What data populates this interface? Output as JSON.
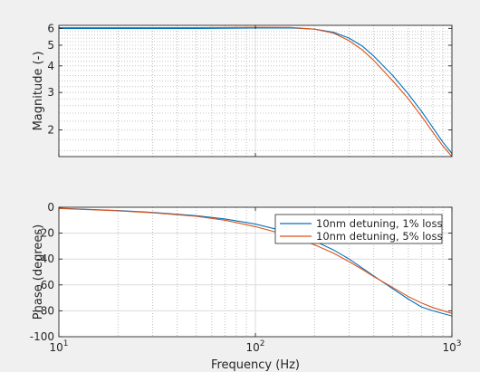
{
  "colors": {
    "series1": "#0072BD",
    "series2": "#D95319",
    "background": "#f0f0f0",
    "axes_bg": "#ffffff"
  },
  "chart_data": [
    {
      "type": "line",
      "xscale": "log",
      "yscale": "log",
      "xlim": [
        10,
        1000
      ],
      "ylim": [
        1.5,
        6.2
      ],
      "grid": true,
      "ylabel": "Magnitude (-)",
      "yticks": [
        2,
        3,
        4,
        5,
        6
      ],
      "ytick_labels": [
        "2",
        "3",
        "4",
        "5",
        "6"
      ],
      "series": [
        {
          "x": [
            10,
            20,
            50,
            100,
            150,
            200,
            250,
            300,
            350,
            400,
            500,
            600,
            700,
            800,
            900,
            1000
          ],
          "y": [
            6.0,
            6.0,
            6.0,
            6.02,
            6.03,
            5.95,
            5.75,
            5.4,
            4.95,
            4.45,
            3.6,
            2.95,
            2.45,
            2.05,
            1.75,
            1.55
          ]
        },
        {
          "x": [
            10,
            20,
            50,
            100,
            150,
            200,
            250,
            300,
            350,
            400,
            500,
            600,
            700,
            800,
            900,
            1000
          ],
          "y": [
            6.05,
            6.05,
            6.05,
            6.07,
            6.06,
            5.95,
            5.7,
            5.25,
            4.75,
            4.25,
            3.4,
            2.8,
            2.32,
            1.95,
            1.68,
            1.5
          ]
        }
      ]
    },
    {
      "type": "line",
      "xscale": "log",
      "xlim": [
        10,
        1000
      ],
      "ylim": [
        -100,
        0
      ],
      "grid": true,
      "xlabel": "Frequency (Hz)",
      "ylabel": "Phase (degrees)",
      "xticks": [
        10,
        100,
        1000
      ],
      "yticks": [
        0,
        -20,
        -40,
        -60,
        -80,
        -100
      ],
      "ytick_labels": [
        "0",
        "-20",
        "-40",
        "-60",
        "-80",
        "-100"
      ],
      "legend_position": "top-right",
      "series": [
        {
          "name": "10nm detuning, 1% loss",
          "x": [
            10,
            20,
            30,
            50,
            70,
            100,
            150,
            200,
            250,
            300,
            350,
            400,
            500,
            600,
            700,
            800,
            1000
          ],
          "y": [
            -0.8,
            -2.5,
            -4,
            -6.5,
            -9,
            -13,
            -19.5,
            -26,
            -33,
            -40,
            -47,
            -53,
            -63,
            -71,
            -77,
            -80,
            -84
          ]
        },
        {
          "name": "10nm detuning, 5% loss",
          "x": [
            10,
            20,
            30,
            50,
            70,
            100,
            150,
            200,
            250,
            300,
            350,
            400,
            500,
            600,
            700,
            800,
            1000
          ],
          "y": [
            -0.9,
            -2.7,
            -4.3,
            -7,
            -10,
            -15,
            -22,
            -29,
            -35.5,
            -42,
            -48,
            -53.5,
            -62,
            -69,
            -74,
            -77.5,
            -82
          ]
        }
      ]
    }
  ]
}
